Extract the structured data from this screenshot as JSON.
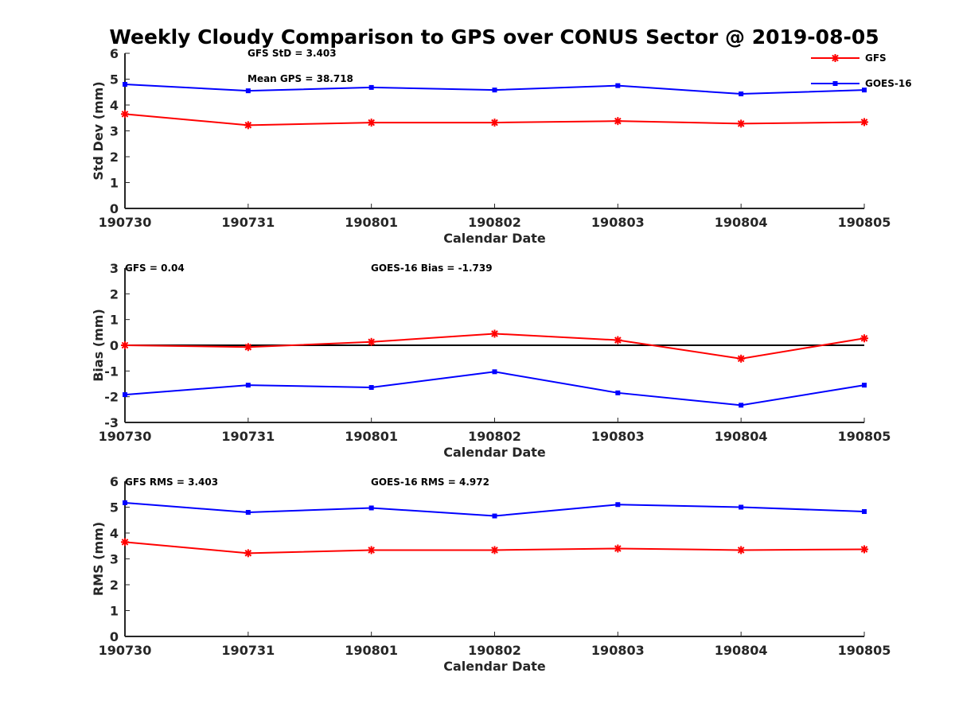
{
  "title": "Weekly Cloudy Comparison to GPS over CONUS Sector @ 2019-08-05",
  "legend": {
    "placement": "top-right",
    "entries": [
      {
        "name": "GFS",
        "color": "#ff0000",
        "marker": "asterisk"
      },
      {
        "name": "GOES-16",
        "color": "#0000ff",
        "marker": "square"
      }
    ]
  },
  "panels": [
    {
      "annotations": [
        "GFS StD = 3.403",
        "Mean GPS = 38.718"
      ]
    },
    {
      "annotations": [
        "GFS = 0.04",
        "GOES-16 Bias  = -1.739"
      ]
    },
    {
      "annotations": [
        "GFS RMS = 3.403",
        "GOES-16 RMS = 4.972"
      ]
    }
  ],
  "chart_data": [
    {
      "type": "line",
      "title": "Weekly Cloudy Comparison to GPS over CONUS Sector @ 2019-08-05",
      "categories": [
        "190730",
        "190731",
        "190801",
        "190802",
        "190803",
        "190804",
        "190805"
      ],
      "xlabel": "Calendar Date",
      "ylabel": "Std Dev (mm)",
      "ylim": [
        0,
        6
      ],
      "yticks": [
        0,
        1,
        2,
        3,
        4,
        5,
        6
      ],
      "grid": false,
      "series": [
        {
          "name": "GFS",
          "color": "#ff0000",
          "values": [
            3.65,
            3.22,
            3.32,
            3.32,
            3.38,
            3.28,
            3.34
          ]
        },
        {
          "name": "GOES-16",
          "color": "#0000ff",
          "values": [
            4.8,
            4.55,
            4.68,
            4.58,
            4.75,
            4.43,
            4.58
          ]
        }
      ]
    },
    {
      "type": "line",
      "categories": [
        "190730",
        "190731",
        "190801",
        "190802",
        "190803",
        "190804",
        "190805"
      ],
      "xlabel": "Calendar Date",
      "ylabel": "Bias (mm)",
      "ylim": [
        -3,
        3
      ],
      "yticks": [
        -3,
        -2,
        -1,
        0,
        1,
        2,
        3
      ],
      "zero_line": true,
      "grid": false,
      "series": [
        {
          "name": "GFS",
          "color": "#ff0000",
          "values": [
            0.0,
            -0.07,
            0.13,
            0.45,
            0.2,
            -0.52,
            0.27
          ]
        },
        {
          "name": "GOES-16",
          "color": "#0000ff",
          "values": [
            -1.92,
            -1.55,
            -1.64,
            -1.03,
            -1.85,
            -2.33,
            -1.55
          ]
        }
      ]
    },
    {
      "type": "line",
      "categories": [
        "190730",
        "190731",
        "190801",
        "190802",
        "190803",
        "190804",
        "190805"
      ],
      "xlabel": "Calendar Date",
      "ylabel": "RMS (mm)",
      "ylim": [
        0,
        6
      ],
      "yticks": [
        0,
        1,
        2,
        3,
        4,
        5,
        6
      ],
      "grid": false,
      "series": [
        {
          "name": "GFS",
          "color": "#ff0000",
          "values": [
            3.65,
            3.22,
            3.34,
            3.34,
            3.4,
            3.34,
            3.37
          ]
        },
        {
          "name": "GOES-16",
          "color": "#0000ff",
          "values": [
            5.17,
            4.8,
            4.97,
            4.66,
            5.1,
            5.0,
            4.83
          ]
        }
      ]
    }
  ]
}
